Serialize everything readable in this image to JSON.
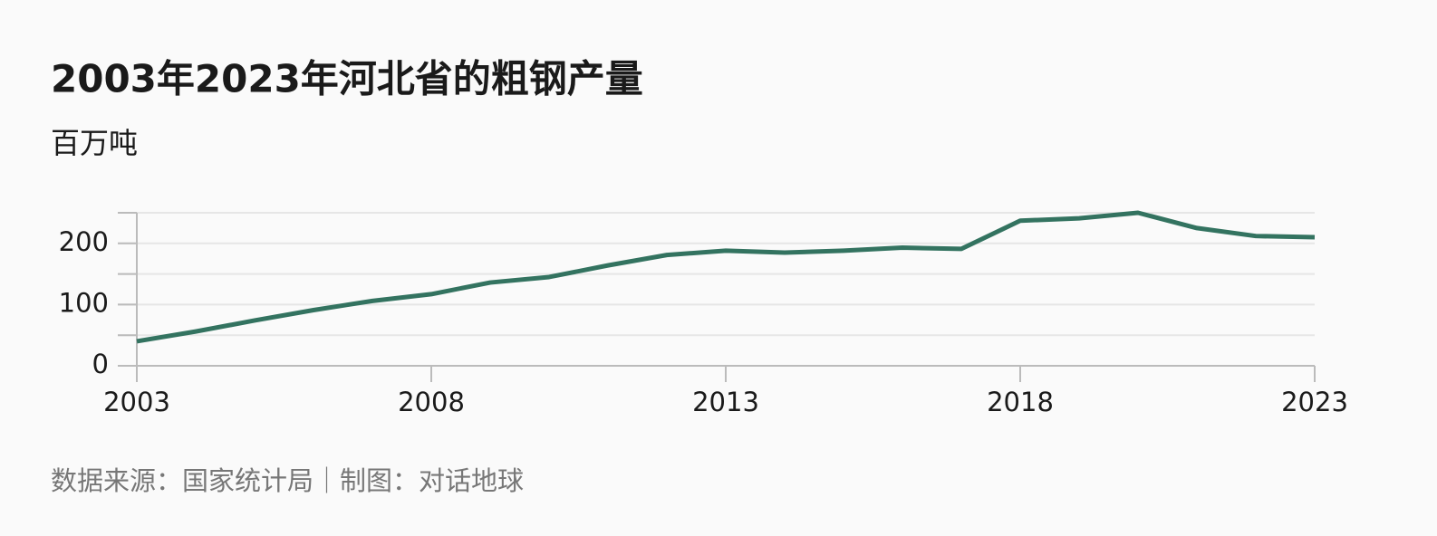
{
  "chart_data": {
    "type": "line",
    "title": "2003年2023年河北省的粗钢产量",
    "subtitle": "百万吨",
    "source": "数据来源：国家统计局｜制图：对话地球",
    "x": [
      2003,
      2004,
      2005,
      2006,
      2007,
      2008,
      2009,
      2010,
      2011,
      2012,
      2013,
      2014,
      2015,
      2016,
      2017,
      2018,
      2019,
      2020,
      2021,
      2022,
      2023
    ],
    "series": [
      {
        "name": "粗钢产量",
        "color": "#337360",
        "values": [
          40,
          56,
          74,
          91,
          106,
          117,
          136,
          145,
          164,
          181,
          188,
          185,
          188,
          193,
          191,
          237,
          241,
          250,
          225,
          212,
          210
        ]
      }
    ],
    "xlim": [
      2003,
      2023
    ],
    "xticks": [
      2003,
      2008,
      2013,
      2018,
      2023
    ],
    "ylim": [
      0,
      250
    ],
    "yticks": [
      0,
      100,
      200
    ],
    "minor_yticks": [
      50,
      150,
      250
    ],
    "grid": true
  }
}
